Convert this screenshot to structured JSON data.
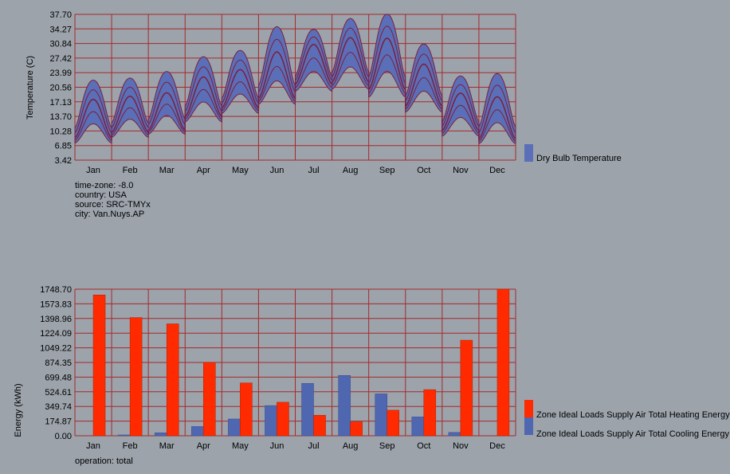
{
  "colors": {
    "background": "#9ca3ab",
    "grid": "#a52a2a",
    "band_fill": "#5b6fb8",
    "band_line": "#7a1f3d",
    "heating": "#ff2a00",
    "cooling": "#4f66b0"
  },
  "temperature_chart": {
    "ylabel": "Temperature (C)",
    "metadata": [
      "time-zone: -8.0",
      "country: USA",
      "source: SRC-TMYx",
      "city: Van.Nuys.AP"
    ]
  },
  "energy_chart": {
    "ylabel": "Energy (kWh)",
    "footer": "operation: total"
  },
  "chart_data": [
    {
      "type": "area",
      "ylabel": "Temperature (C)",
      "ylim": [
        3.42,
        37.7
      ],
      "y_ticks": [
        "37.70",
        "34.27",
        "30.84",
        "27.42",
        "23.99",
        "20.56",
        "17.13",
        "13.70",
        "10.28",
        "6.85",
        "3.42"
      ],
      "categories": [
        "Jan",
        "Feb",
        "Mar",
        "Apr",
        "May",
        "Jun",
        "Jul",
        "Aug",
        "Sep",
        "Oct",
        "Nov",
        "Dec"
      ],
      "grid": true,
      "legend_position": "right",
      "series": [
        {
          "name": "Dry Bulb Temperature",
          "monthly_low": [
            5.5,
            7.0,
            8.0,
            10.5,
            12.5,
            14.5,
            17.0,
            17.5,
            15.5,
            12.5,
            7.0,
            5.5
          ],
          "monthly_mean": [
            12.5,
            13.5,
            13.5,
            17.5,
            19.5,
            22.0,
            26.5,
            27.0,
            25.5,
            20.5,
            14.5,
            12.0
          ],
          "monthly_high": [
            22.0,
            22.5,
            24.0,
            27.5,
            29.0,
            34.5,
            34.0,
            36.5,
            37.5,
            30.5,
            23.0,
            23.5
          ]
        }
      ]
    },
    {
      "type": "bar",
      "ylabel": "Energy (kWh)",
      "ylim": [
        0.0,
        1748.7
      ],
      "y_ticks": [
        "1748.70",
        "1573.83",
        "1398.96",
        "1224.09",
        "1049.22",
        "874.35",
        "699.48",
        "524.61",
        "349.74",
        "174.87",
        "0.00"
      ],
      "categories": [
        "Jan",
        "Feb",
        "Mar",
        "Apr",
        "May",
        "Jun",
        "Jul",
        "Aug",
        "Sep",
        "Oct",
        "Nov",
        "Dec"
      ],
      "grid": true,
      "legend_position": "right",
      "series": [
        {
          "name": "Zone Ideal Loads Supply Air Total Heating Energy",
          "values": [
            1680,
            1410,
            1335,
            875,
            630,
            400,
            245,
            165,
            305,
            550,
            1140,
            1748.7
          ]
        },
        {
          "name": "Zone Ideal Loads Supply Air Total Cooling Energy",
          "values": [
            0,
            10,
            35,
            110,
            200,
            360,
            625,
            720,
            500,
            225,
            40,
            0
          ]
        }
      ]
    }
  ]
}
